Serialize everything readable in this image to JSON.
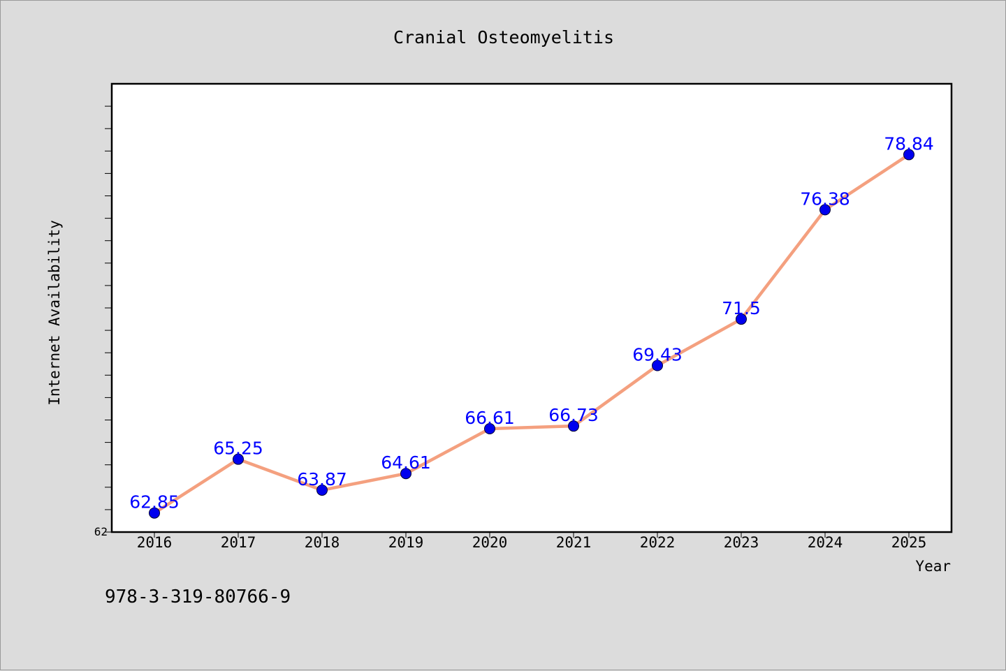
{
  "chart_data": {
    "type": "line",
    "title": "Cranial Osteomyelitis",
    "xlabel": "Year",
    "ylabel": "Internet Availability",
    "categories": [
      "2016",
      "2017",
      "2018",
      "2019",
      "2020",
      "2021",
      "2022",
      "2023",
      "2024",
      "2025"
    ],
    "series": [
      {
        "values": [
          62.85,
          65.25,
          63.87,
          64.61,
          66.61,
          66.73,
          69.43,
          71.5,
          76.38,
          78.84
        ],
        "labels": [
          "62.85",
          "65.25",
          "63.87",
          "64.61",
          "66.61",
          "66.73",
          "69.43",
          "71.5",
          "76.38",
          "78.84"
        ],
        "line_color": "#f4a07f",
        "marker_color": "#0000ee",
        "label_color": "#0000ff"
      }
    ],
    "ylim": [
      62,
      82
    ],
    "y_tick_labels": [
      "62"
    ],
    "grid": false,
    "legend": "none"
  },
  "footer": {
    "isbn": "978-3-319-80766-9"
  }
}
